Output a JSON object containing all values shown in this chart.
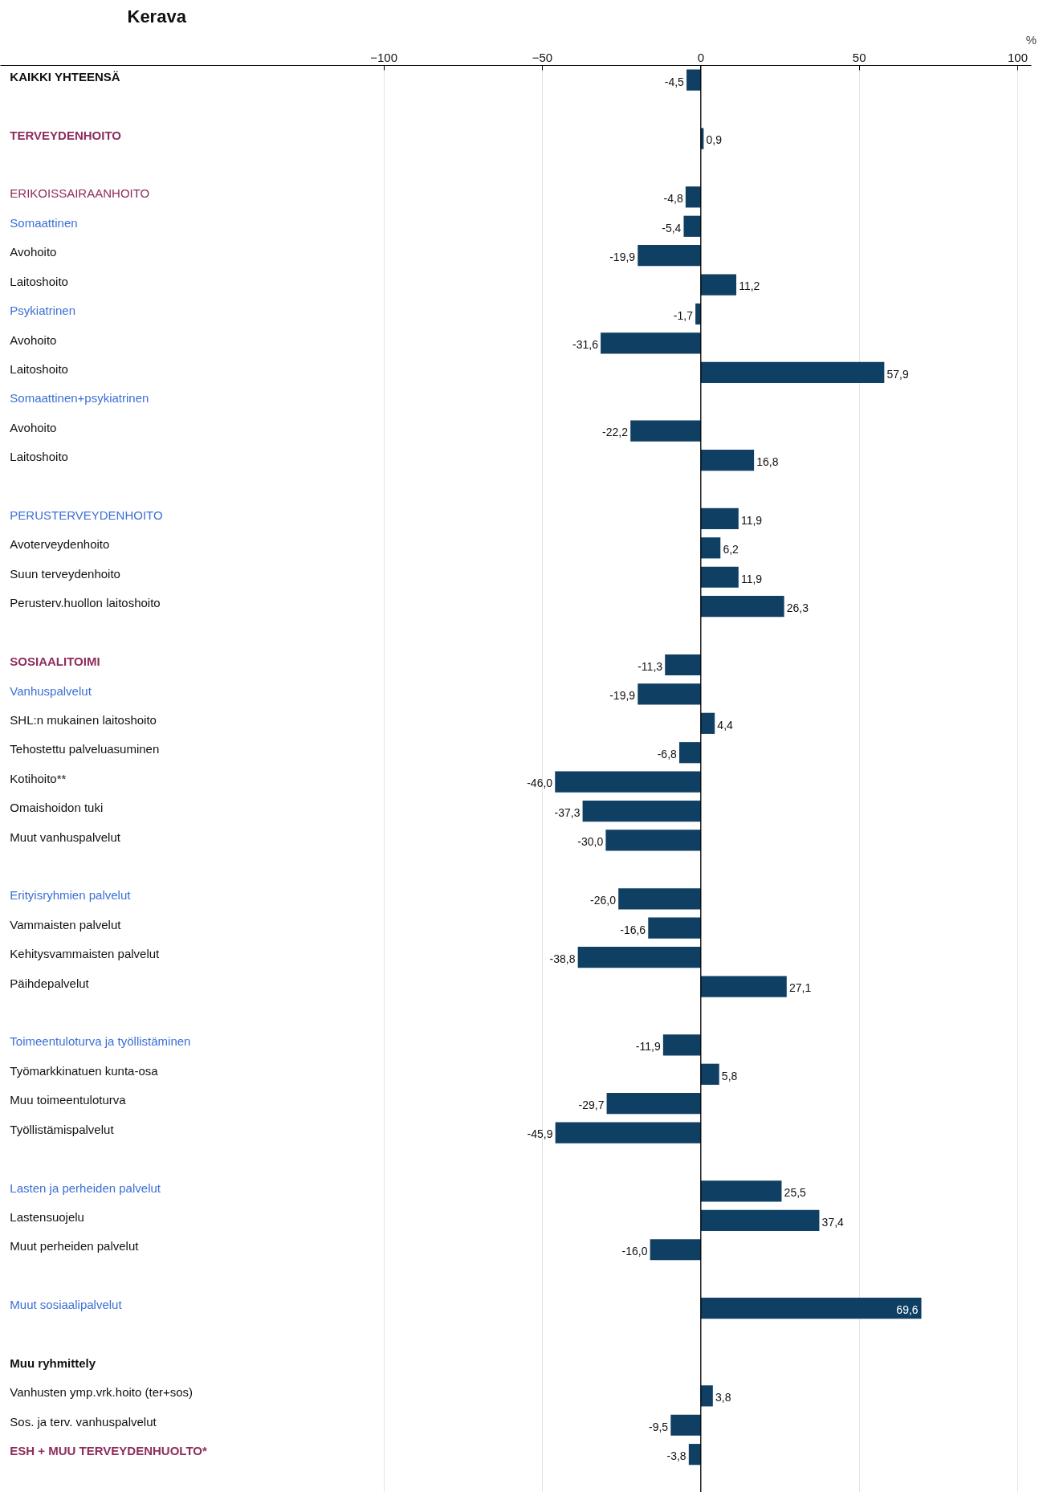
{
  "chart_data": {
    "type": "bar",
    "orientation": "horizontal",
    "title": "Kerava",
    "xlabel": "%",
    "categories": [
      "KAIKKI YHTEENSÄ",
      null,
      "TERVEYDENHOITO",
      null,
      "ERIKOISSAIRAANHOITO",
      "Somaattinen",
      "Avohoito",
      "Laitoshoito",
      "Psykiatrinen",
      "Avohoito",
      "Laitoshoito",
      "Somaattinen+psykiatrinen",
      "Avohoito",
      "Laitoshoito",
      null,
      "PERUSTERVEYDENHOITO",
      "Avoterveydenhoito",
      "Suun terveydenhoito",
      "Perusterv.huollon laitoshoito",
      null,
      "SOSIAALITOIMI",
      "Vanhuspalvelut",
      "SHL:n mukainen laitoshoito",
      "Tehostettu palveluasuminen",
      "Kotihoito**",
      "Omaishoidon tuki",
      "Muut vanhuspalvelut",
      null,
      "Erityisryhmien palvelut",
      "Vammaisten palvelut",
      "Kehitysvammaisten palvelut",
      "Päihdepalvelut",
      null,
      "Toimeentuloturva ja työllistäminen",
      "Työmarkkinatuen kunta-osa",
      "Muu toimeentuloturva",
      "Työllistämispalvelut",
      null,
      "Lasten ja perheiden palvelut",
      "Lastensuojelu",
      "Muut perheiden palvelut",
      null,
      "Muut sosiaalipalvelut",
      null,
      "Muu ryhmittely",
      "Vanhusten ymp.vrk.hoito (ter+sos)",
      "Sos. ja terv. vanhuspalvelut",
      "ESH + MUU TERVEYDENHUOLTO*"
    ],
    "values": [
      -4.5,
      null,
      0.9,
      null,
      -4.8,
      -5.4,
      -19.9,
      11.2,
      -1.7,
      -31.6,
      57.9,
      null,
      -22.2,
      16.8,
      null,
      11.9,
      6.2,
      11.9,
      26.3,
      null,
      -11.3,
      -19.9,
      4.4,
      -6.8,
      -46.0,
      -37.3,
      -30.0,
      null,
      -26.0,
      -16.6,
      -38.8,
      27.1,
      null,
      -11.9,
      5.8,
      -29.7,
      -45.9,
      null,
      25.5,
      37.4,
      -16.0,
      null,
      69.6,
      null,
      null,
      3.8,
      -9.5,
      -3.8
    ],
    "value_labels": [
      "-4,5",
      null,
      "0,9",
      null,
      "-4,8",
      "-5,4",
      "-19,9",
      "11,2",
      "-1,7",
      "-31,6",
      "57,9",
      null,
      "-22,2",
      "16,8",
      null,
      "11,9",
      "6,2",
      "11,9",
      "26,3",
      null,
      "-11,3",
      "-19,9",
      "4,4",
      "-6,8",
      "-46,0",
      "-37,3",
      "-30,0",
      null,
      "-26,0",
      "-16,6",
      "-38,8",
      "27,1",
      null,
      "-11,9",
      "5,8",
      "-29,7",
      "-45,9",
      null,
      "25,5",
      "37,4",
      "-16,0",
      null,
      "69,6",
      null,
      null,
      "3,8",
      "-9,5",
      "-3,8"
    ],
    "color": "#0f3f63",
    "xlim": [
      -221,
      104.3
    ],
    "xticks": [
      -100,
      -50,
      0,
      50,
      100
    ],
    "ref_lines": [
      {
        "axis": "x",
        "value": 0,
        "color": "#000000"
      }
    ],
    "grid": "x",
    "legend": false
  }
}
